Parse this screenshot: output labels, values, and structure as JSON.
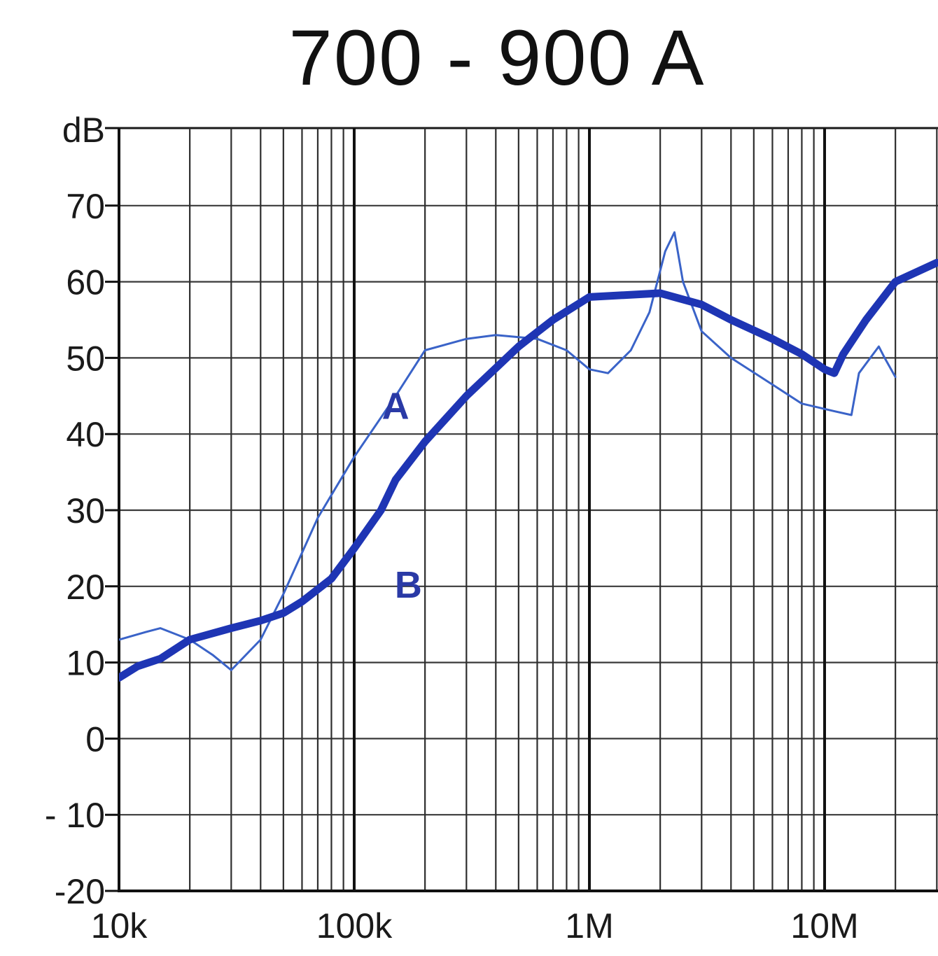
{
  "chart_data": {
    "type": "line",
    "title": "700 - 900 A",
    "xscale": "log",
    "xlim": [
      10000,
      40000000
    ],
    "ylim": [
      -20,
      80
    ],
    "y_unit_label": "dB",
    "grid": true,
    "y_ticks": [
      {
        "v": 70,
        "label": "70"
      },
      {
        "v": 60,
        "label": "60"
      },
      {
        "v": 50,
        "label": "50"
      },
      {
        "v": 40,
        "label": "40"
      },
      {
        "v": 30,
        "label": "30"
      },
      {
        "v": 20,
        "label": "20"
      },
      {
        "v": 10,
        "label": "10"
      },
      {
        "v": 0,
        "label": "0"
      },
      {
        "v": -10,
        "label": "- 10"
      },
      {
        "v": -20,
        "label": "-20"
      }
    ],
    "x_ticks": [
      {
        "v": 10000,
        "label": "10k"
      },
      {
        "v": 100000,
        "label": "100k"
      },
      {
        "v": 1000000,
        "label": "1M"
      },
      {
        "v": 10000000,
        "label": "10M"
      }
    ],
    "series": [
      {
        "name": "A",
        "color": "#3a63c8",
        "points": [
          [
            10000,
            13
          ],
          [
            13000,
            14
          ],
          [
            15000,
            14.5
          ],
          [
            20000,
            13
          ],
          [
            25000,
            11
          ],
          [
            30000,
            9
          ],
          [
            40000,
            13
          ],
          [
            50000,
            19
          ],
          [
            70000,
            29
          ],
          [
            100000,
            37
          ],
          [
            150000,
            45
          ],
          [
            200000,
            51
          ],
          [
            300000,
            52.5
          ],
          [
            400000,
            53
          ],
          [
            600000,
            52.5
          ],
          [
            800000,
            51
          ],
          [
            1000000,
            48.5
          ],
          [
            1200000,
            48
          ],
          [
            1500000,
            51
          ],
          [
            1800000,
            56
          ],
          [
            2100000,
            64
          ],
          [
            2300000,
            66.5
          ],
          [
            2500000,
            60
          ],
          [
            3000000,
            53.5
          ],
          [
            4000000,
            50
          ],
          [
            6000000,
            46.5
          ],
          [
            8000000,
            44
          ],
          [
            11000000,
            43
          ],
          [
            13000000,
            42.5
          ],
          [
            14000000,
            48
          ],
          [
            17000000,
            51.5
          ],
          [
            18000000,
            50
          ],
          [
            20000000,
            47.5
          ]
        ]
      },
      {
        "name": "B",
        "color": "#1e35b4",
        "points": [
          [
            10000,
            8
          ],
          [
            12000,
            9.5
          ],
          [
            15000,
            10.5
          ],
          [
            20000,
            13
          ],
          [
            30000,
            14.5
          ],
          [
            40000,
            15.5
          ],
          [
            50000,
            16.5
          ],
          [
            60000,
            18
          ],
          [
            80000,
            21
          ],
          [
            100000,
            25
          ],
          [
            130000,
            30
          ],
          [
            150000,
            34
          ],
          [
            200000,
            39
          ],
          [
            300000,
            45
          ],
          [
            500000,
            51.5
          ],
          [
            700000,
            55
          ],
          [
            1000000,
            58
          ],
          [
            2000000,
            58.5
          ],
          [
            3000000,
            57
          ],
          [
            4000000,
            55
          ],
          [
            6000000,
            52.5
          ],
          [
            8000000,
            50.5
          ],
          [
            10000000,
            48.5
          ],
          [
            11000000,
            48
          ],
          [
            12000000,
            50.5
          ],
          [
            15000000,
            55
          ],
          [
            20000000,
            60
          ],
          [
            30000000,
            62.5
          ]
        ]
      }
    ],
    "annotations": [
      {
        "text": "A",
        "x": 150000,
        "y": 42,
        "color": "#2a3aa6"
      },
      {
        "text": "B",
        "x": 170000,
        "y": 18.5,
        "color": "#2a3aa6"
      }
    ]
  }
}
